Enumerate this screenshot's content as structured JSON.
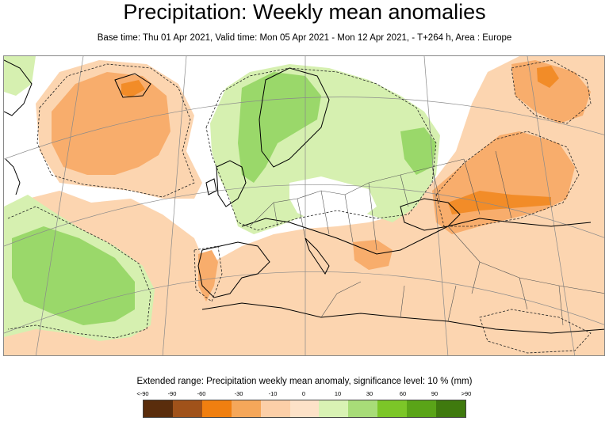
{
  "header": {
    "title": "Precipitation: Weekly mean anomalies",
    "subtitle": "Base time: Thu 01 Apr 2021, Valid time: Mon 05 Apr 2021 - Mon 12 Apr 2021, - T+264 h, Area : Europe"
  },
  "legend": {
    "title": "Extended range: Precipitation weekly mean anomaly, significance level: 10 % (mm)",
    "ticks": [
      "<-90",
      "-90",
      "-60",
      "-30",
      "-10",
      "0",
      "10",
      "30",
      "60",
      "90",
      ">90"
    ],
    "colors": [
      "#5a2d0c",
      "#a0521a",
      "#f07f10",
      "#f5a75a",
      "#fccfa8",
      "#fde2c8",
      "#d9f2b4",
      "#a8dc78",
      "#7cc628",
      "#5aa418",
      "#3f7a0e"
    ]
  },
  "map_colors": {
    "ocean": "#ffffff",
    "dry_light": "#fcd5b0",
    "dry_medium": "#f8ad6c",
    "dry_strong": "#f28c28",
    "wet_light": "#d6f0b0",
    "wet_medium": "#9ad86a",
    "coast": "#000000",
    "border": "#555555",
    "graticule": "#8a8a8a"
  }
}
